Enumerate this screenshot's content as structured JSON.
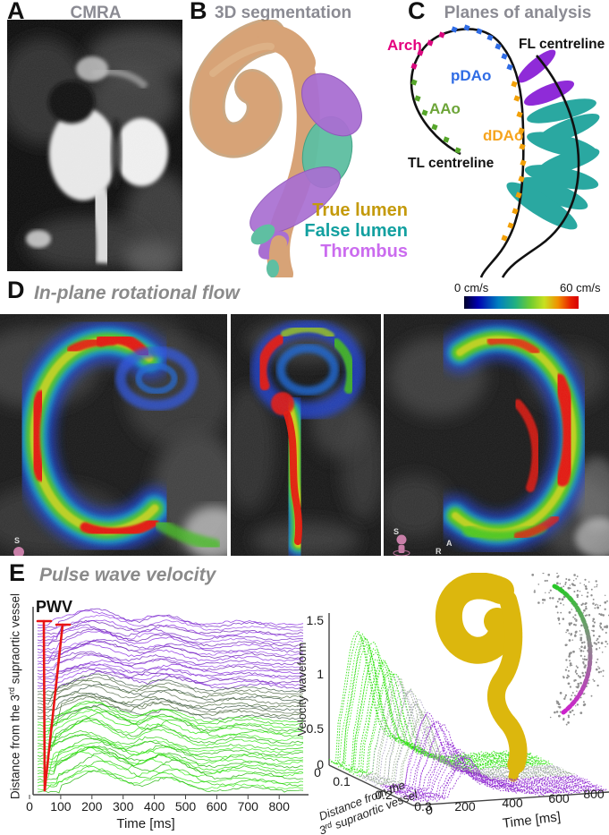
{
  "panels": {
    "a": {
      "label": "A",
      "title": "CMRA"
    },
    "b": {
      "label": "B",
      "title": "3D segmentation",
      "legend": [
        {
          "text": "True lumen",
          "color": "#C49A0C"
        },
        {
          "text": "False lumen",
          "color": "#12A0A0"
        },
        {
          "text": "Thrombus",
          "color": "#CB6CEF"
        }
      ]
    },
    "c": {
      "label": "C",
      "title": "Planes of analysis",
      "arch": "Arch",
      "pdao": "pDAo",
      "aao": "AAo",
      "ddao": "dDAo",
      "fl_centreline": "FL centreline",
      "tl_centreline": "TL centreline"
    },
    "d": {
      "label": "D",
      "title": "In-plane rotational flow",
      "colorbar": {
        "min": "0 cm/s",
        "max": "60 cm/s"
      },
      "markers": {
        "img1_s": "S",
        "img3_s": "S",
        "img3_a": "A",
        "img3_r": "R"
      }
    },
    "e": {
      "label": "E",
      "title": "Pulse wave velocity",
      "left": {
        "pwv": "PWV",
        "ylabel_pre": "Distance from the 3",
        "ylabel_sup": "rd",
        "ylabel_post": " supraortic vessel",
        "xlabel": "Time [ms]",
        "xticks": [
          "0",
          "100",
          "200",
          "300",
          "400",
          "500",
          "600",
          "700",
          "800"
        ]
      },
      "right": {
        "ylabel": "Velocity waveform",
        "yticks": [
          "1.5",
          "1",
          "0.5",
          "0"
        ],
        "dist_ticks": [
          "0",
          "0.1",
          "0.2",
          "0.3"
        ],
        "dist_label_line1": "Distance from the",
        "dist_label_pre": "3",
        "dist_label_sup": "rd",
        "dist_label_post": " supraortic vessel",
        "time_label": "Time [ms]",
        "time_ticks": [
          "0",
          "200",
          "400",
          "600",
          "800"
        ]
      }
    }
  },
  "colors": {
    "panel_title_gray": "#8B8B93",
    "arch": "#E4007E",
    "pdao": "#2F6CE5",
    "aao": "#6CA437",
    "ddao": "#F6A41E",
    "fl_plane_purple": "#8F2BD8",
    "analysis_plane_teal": "#2AA8A1",
    "aorta_tan": "#D7A377",
    "true_lumen_gold": "#DCB70D",
    "trace_green": "#2DE60D",
    "trace_purple": "#9B30D9",
    "pwv_red": "#E81414",
    "flow_colormap": "jet"
  },
  "chart_data": [
    {
      "type": "line",
      "title": "Pulse wave velocity waveforms (panel E, left)",
      "xlabel": "Time [ms]",
      "xlim": [
        0,
        860
      ],
      "x_ticks": [
        0,
        100,
        200,
        300,
        400,
        500,
        600,
        700,
        800
      ],
      "ylabel": "Distance from the 3rd supraortic vessel",
      "y_axis_numeric": false,
      "annotations": [
        "PWV"
      ],
      "description": "About 55 stacked velocity-time traces ordered by distance along the aorta; proximal traces bright green (bottom), mid traces dark green-grey, distal traces purple (top); two red lines from a common foot mark the wavefront arrival slope used to compute PWV."
    },
    {
      "type": "line",
      "title": "Velocity waveform surface (panel E, right)",
      "xlabel": "Time [ms]",
      "x_ticks": [
        0,
        200,
        400,
        600,
        800
      ],
      "ylabel": "Velocity waveform",
      "ylim": [
        0,
        1.5
      ],
      "y_ticks": [
        0,
        0.5,
        1,
        1.5
      ],
      "zlabel": "Distance from the 3rd supraortic vessel",
      "z_ticks": [
        0,
        0.1,
        0.2,
        0.3
      ],
      "description": "3D waterfall of velocity waveforms: peak velocity about 1.45 near distance 0 (green) decaying to about 0.4 at distance 0.3 (purple); inset aorta rendered as gold point cloud with grey false-lumen points and a centreline coloured green to magenta."
    },
    {
      "type": "colorbar",
      "title": "In-plane rotational flow speed (panel D)",
      "min": "0 cm/s",
      "max": "60 cm/s",
      "colormap": "jet",
      "range_cm_s": [
        0,
        60
      ]
    }
  ]
}
